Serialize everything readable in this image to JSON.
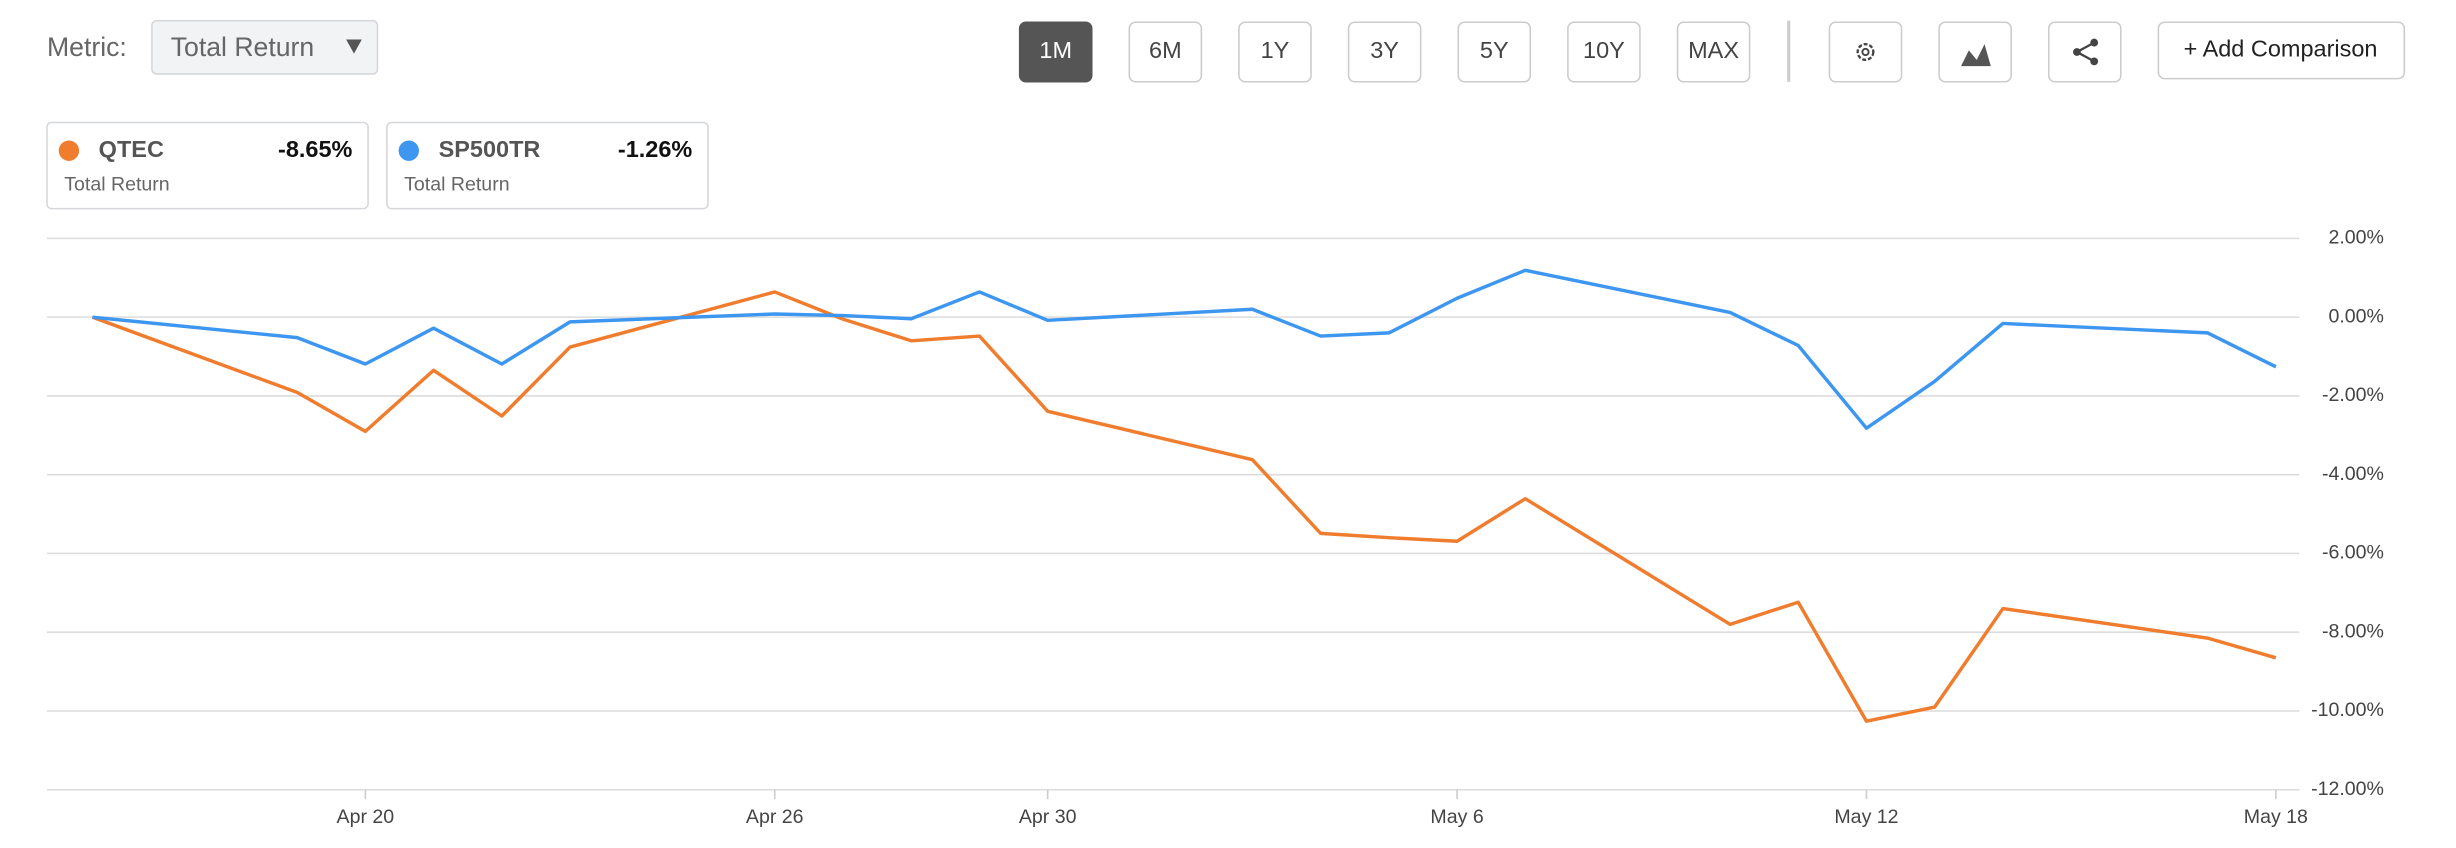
{
  "controls": {
    "metric_label": "Metric:",
    "metric_value": "Total Return",
    "ranges": [
      "1M",
      "6M",
      "1Y",
      "3Y",
      "5Y",
      "10Y",
      "MAX"
    ],
    "active_range": "1M",
    "add_comparison": "+ Add Comparison"
  },
  "chart_data": {
    "type": "line",
    "x": [
      "Apr 16",
      "Apr 19",
      "Apr 20",
      "Apr 21",
      "Apr 22",
      "Apr 23",
      "Apr 26",
      "Apr 27",
      "Apr 28",
      "Apr 29",
      "Apr 30",
      "May 3",
      "May 4",
      "May 5",
      "May 6",
      "May 7",
      "May 10",
      "May 11",
      "May 12",
      "May 13",
      "May 14",
      "May 17",
      "May 18"
    ],
    "series": [
      {
        "name": "QTEC",
        "color": "#f07c2e",
        "return_label": "-8.65%",
        "metric": "Total Return",
        "values": [
          0,
          -1.91,
          -2.9,
          -1.35,
          -2.51,
          -0.76,
          0.64,
          -0.05,
          -0.6,
          -0.48,
          -2.39,
          -3.62,
          -5.49,
          -5.6,
          -5.69,
          -4.61,
          -7.8,
          -7.24,
          -10.26,
          -9.9,
          -7.4,
          -8.15,
          -8.65
        ]
      },
      {
        "name": "SP500TR",
        "color": "#3d96f0",
        "return_label": "-1.26%",
        "metric": "Total Return",
        "values": [
          0,
          -0.52,
          -1.19,
          -0.28,
          -1.19,
          -0.12,
          0.08,
          0.04,
          -0.04,
          0.64,
          -0.08,
          0.2,
          -0.48,
          -0.4,
          0.48,
          1.19,
          0.12,
          -0.72,
          -2.82,
          -1.63,
          -0.16,
          -0.4,
          -1.26
        ]
      }
    ],
    "xlim": [
      "Apr 16",
      "May 18"
    ],
    "xticks": [
      "Apr 20",
      "Apr 26",
      "Apr 30",
      "May 6",
      "May 12",
      "May 18"
    ],
    "ylim": [
      -12,
      2
    ],
    "yticks": [
      {
        "value": 2,
        "label": "2.00%"
      },
      {
        "value": 0,
        "label": "0.00%"
      },
      {
        "value": -2,
        "label": "-2.00%"
      },
      {
        "value": -4,
        "label": "-4.00%"
      },
      {
        "value": -6,
        "label": "-6.00%"
      },
      {
        "value": -8,
        "label": "-8.00%"
      },
      {
        "value": -10,
        "label": "-10.00%"
      },
      {
        "value": -12,
        "label": "-12.00%"
      }
    ],
    "grid": true
  }
}
